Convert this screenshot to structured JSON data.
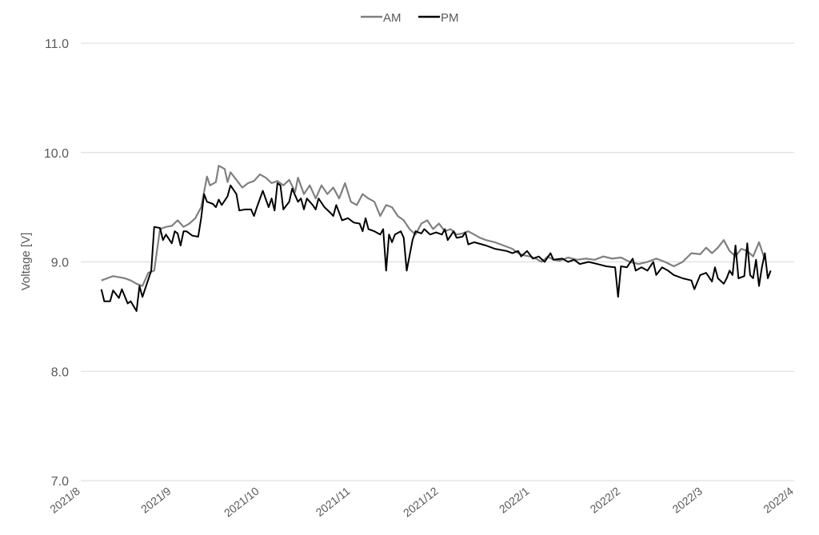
{
  "chart_data": {
    "type": "line",
    "title": "",
    "xlabel": "",
    "ylabel": "Voltage [V]",
    "ylim": [
      7.0,
      11.0
    ],
    "yticks": [
      "7.0",
      "8.0",
      "9.0",
      "10.0",
      "11.0"
    ],
    "xlim": [
      "2021-08-01",
      "2022-04-01"
    ],
    "xticks": [
      "2021/8",
      "2021/9",
      "2021/10",
      "2021/11",
      "2021/12",
      "2022/1",
      "2022/2",
      "2022/3",
      "2022/4"
    ],
    "grid": true,
    "legend_position": "top-center",
    "series": [
      {
        "name": "AM",
        "color": "#808080",
        "points": [
          [
            "2021-08-08",
            8.83
          ],
          [
            "2021-08-10",
            8.85
          ],
          [
            "2021-08-12",
            8.87
          ],
          [
            "2021-08-14",
            8.86
          ],
          [
            "2021-08-16",
            8.85
          ],
          [
            "2021-08-18",
            8.83
          ],
          [
            "2021-08-20",
            8.8
          ],
          [
            "2021-08-22",
            8.78
          ],
          [
            "2021-08-24",
            8.9
          ],
          [
            "2021-08-26",
            8.92
          ],
          [
            "2021-08-28",
            9.3
          ],
          [
            "2021-08-30",
            9.32
          ],
          [
            "2021-09-01",
            9.33
          ],
          [
            "2021-09-03",
            9.38
          ],
          [
            "2021-09-05",
            9.32
          ],
          [
            "2021-09-07",
            9.35
          ],
          [
            "2021-09-09",
            9.4
          ],
          [
            "2021-09-11",
            9.5
          ],
          [
            "2021-09-13",
            9.78
          ],
          [
            "2021-09-14",
            9.7
          ],
          [
            "2021-09-16",
            9.73
          ],
          [
            "2021-09-17",
            9.88
          ],
          [
            "2021-09-19",
            9.85
          ],
          [
            "2021-09-20",
            9.73
          ],
          [
            "2021-09-21",
            9.82
          ],
          [
            "2021-09-23",
            9.75
          ],
          [
            "2021-09-25",
            9.68
          ],
          [
            "2021-09-27",
            9.72
          ],
          [
            "2021-09-29",
            9.74
          ],
          [
            "2021-10-01",
            9.8
          ],
          [
            "2021-10-03",
            9.77
          ],
          [
            "2021-10-05",
            9.72
          ],
          [
            "2021-10-07",
            9.74
          ],
          [
            "2021-10-09",
            9.7
          ],
          [
            "2021-10-11",
            9.75
          ],
          [
            "2021-10-13",
            9.64
          ],
          [
            "2021-10-14",
            9.77
          ],
          [
            "2021-10-16",
            9.62
          ],
          [
            "2021-10-18",
            9.7
          ],
          [
            "2021-10-20",
            9.58
          ],
          [
            "2021-10-22",
            9.7
          ],
          [
            "2021-10-24",
            9.62
          ],
          [
            "2021-10-26",
            9.68
          ],
          [
            "2021-10-28",
            9.58
          ],
          [
            "2021-10-30",
            9.72
          ],
          [
            "2021-11-01",
            9.55
          ],
          [
            "2021-11-03",
            9.52
          ],
          [
            "2021-11-05",
            9.62
          ],
          [
            "2021-11-07",
            9.58
          ],
          [
            "2021-11-09",
            9.55
          ],
          [
            "2021-11-11",
            9.42
          ],
          [
            "2021-11-13",
            9.52
          ],
          [
            "2021-11-15",
            9.5
          ],
          [
            "2021-11-17",
            9.42
          ],
          [
            "2021-11-19",
            9.38
          ],
          [
            "2021-11-21",
            9.3
          ],
          [
            "2021-11-23",
            9.25
          ],
          [
            "2021-11-25",
            9.35
          ],
          [
            "2021-11-27",
            9.38
          ],
          [
            "2021-11-29",
            9.3
          ],
          [
            "2021-12-01",
            9.35
          ],
          [
            "2021-12-03",
            9.28
          ],
          [
            "2021-12-05",
            9.3
          ],
          [
            "2021-12-07",
            9.25
          ],
          [
            "2021-12-09",
            9.26
          ],
          [
            "2021-12-11",
            9.28
          ],
          [
            "2021-12-13",
            9.25
          ],
          [
            "2021-12-15",
            9.22
          ],
          [
            "2021-12-17",
            9.2
          ],
          [
            "2021-12-20",
            9.18
          ],
          [
            "2021-12-23",
            9.15
          ],
          [
            "2021-12-26",
            9.12
          ],
          [
            "2021-12-28",
            9.08
          ],
          [
            "2021-12-30",
            9.06
          ],
          [
            "2022-01-01",
            9.05
          ],
          [
            "2022-01-03",
            9.03
          ],
          [
            "2022-01-05",
            9.0
          ],
          [
            "2022-01-07",
            9.05
          ],
          [
            "2022-01-09",
            9.02
          ],
          [
            "2022-01-11",
            9.01
          ],
          [
            "2022-01-14",
            9.04
          ],
          [
            "2022-01-17",
            9.02
          ],
          [
            "2022-01-20",
            9.03
          ],
          [
            "2022-01-23",
            9.02
          ],
          [
            "2022-01-26",
            9.05
          ],
          [
            "2022-01-29",
            9.03
          ],
          [
            "2022-02-01",
            9.04
          ],
          [
            "2022-02-04",
            9.0
          ],
          [
            "2022-02-07",
            8.98
          ],
          [
            "2022-02-10",
            9.0
          ],
          [
            "2022-02-13",
            9.03
          ],
          [
            "2022-02-16",
            9.0
          ],
          [
            "2022-02-19",
            8.96
          ],
          [
            "2022-02-22",
            9.0
          ],
          [
            "2022-02-25",
            9.08
          ],
          [
            "2022-02-28",
            9.07
          ],
          [
            "2022-03-02",
            9.13
          ],
          [
            "2022-03-04",
            9.08
          ],
          [
            "2022-03-06",
            9.13
          ],
          [
            "2022-03-08",
            9.2
          ],
          [
            "2022-03-10",
            9.1
          ],
          [
            "2022-03-12",
            9.05
          ],
          [
            "2022-03-14",
            9.12
          ],
          [
            "2022-03-16",
            9.1
          ],
          [
            "2022-03-18",
            9.05
          ],
          [
            "2022-03-20",
            9.18
          ],
          [
            "2022-03-22",
            9.02
          ]
        ]
      },
      {
        "name": "PM",
        "color": "#000000",
        "points": [
          [
            "2021-08-08",
            8.75
          ],
          [
            "2021-08-09",
            8.64
          ],
          [
            "2021-08-11",
            8.64
          ],
          [
            "2021-08-12",
            8.74
          ],
          [
            "2021-08-14",
            8.67
          ],
          [
            "2021-08-15",
            8.75
          ],
          [
            "2021-08-17",
            8.62
          ],
          [
            "2021-08-18",
            8.64
          ],
          [
            "2021-08-20",
            8.55
          ],
          [
            "2021-08-21",
            8.78
          ],
          [
            "2021-08-22",
            8.68
          ],
          [
            "2021-08-25",
            8.92
          ],
          [
            "2021-08-26",
            9.32
          ],
          [
            "2021-08-28",
            9.31
          ],
          [
            "2021-08-29",
            9.2
          ],
          [
            "2021-08-30",
            9.25
          ],
          [
            "2021-09-01",
            9.17
          ],
          [
            "2021-09-02",
            9.28
          ],
          [
            "2021-09-03",
            9.26
          ],
          [
            "2021-09-04",
            9.15
          ],
          [
            "2021-09-05",
            9.28
          ],
          [
            "2021-09-06",
            9.28
          ],
          [
            "2021-09-08",
            9.24
          ],
          [
            "2021-09-10",
            9.23
          ],
          [
            "2021-09-11",
            9.4
          ],
          [
            "2021-09-12",
            9.62
          ],
          [
            "2021-09-13",
            9.55
          ],
          [
            "2021-09-15",
            9.53
          ],
          [
            "2021-09-16",
            9.5
          ],
          [
            "2021-09-17",
            9.57
          ],
          [
            "2021-09-18",
            9.52
          ],
          [
            "2021-09-20",
            9.6
          ],
          [
            "2021-09-21",
            9.7
          ],
          [
            "2021-09-23",
            9.62
          ],
          [
            "2021-09-24",
            9.47
          ],
          [
            "2021-09-26",
            9.48
          ],
          [
            "2021-09-28",
            9.48
          ],
          [
            "2021-09-29",
            9.42
          ],
          [
            "2021-09-30",
            9.5
          ],
          [
            "2021-10-02",
            9.65
          ],
          [
            "2021-10-04",
            9.5
          ],
          [
            "2021-10-05",
            9.58
          ],
          [
            "2021-10-06",
            9.47
          ],
          [
            "2021-10-07",
            9.72
          ],
          [
            "2021-10-08",
            9.7
          ],
          [
            "2021-10-09",
            9.48
          ],
          [
            "2021-10-11",
            9.55
          ],
          [
            "2021-10-12",
            9.67
          ],
          [
            "2021-10-14",
            9.55
          ],
          [
            "2021-10-15",
            9.58
          ],
          [
            "2021-10-16",
            9.48
          ],
          [
            "2021-10-17",
            9.58
          ],
          [
            "2021-10-19",
            9.52
          ],
          [
            "2021-10-20",
            9.48
          ],
          [
            "2021-10-21",
            9.58
          ],
          [
            "2021-10-23",
            9.5
          ],
          [
            "2021-10-25",
            9.45
          ],
          [
            "2021-10-26",
            9.42
          ],
          [
            "2021-10-27",
            9.52
          ],
          [
            "2021-10-29",
            9.38
          ],
          [
            "2021-10-31",
            9.4
          ],
          [
            "2021-11-02",
            9.36
          ],
          [
            "2021-11-04",
            9.35
          ],
          [
            "2021-11-05",
            9.28
          ],
          [
            "2021-11-06",
            9.4
          ],
          [
            "2021-11-07",
            9.3
          ],
          [
            "2021-11-09",
            9.28
          ],
          [
            "2021-11-11",
            9.25
          ],
          [
            "2021-11-12",
            9.3
          ],
          [
            "2021-11-13",
            8.92
          ],
          [
            "2021-11-14",
            9.25
          ],
          [
            "2021-11-15",
            9.18
          ],
          [
            "2021-11-16",
            9.25
          ],
          [
            "2021-11-18",
            9.28
          ],
          [
            "2021-11-19",
            9.22
          ],
          [
            "2021-11-20",
            8.92
          ],
          [
            "2021-11-22",
            9.2
          ],
          [
            "2021-11-23",
            9.28
          ],
          [
            "2021-11-25",
            9.26
          ],
          [
            "2021-11-26",
            9.3
          ],
          [
            "2021-11-28",
            9.25
          ],
          [
            "2021-11-30",
            9.27
          ],
          [
            "2021-12-02",
            9.25
          ],
          [
            "2021-12-03",
            9.3
          ],
          [
            "2021-12-04",
            9.2
          ],
          [
            "2021-12-06",
            9.28
          ],
          [
            "2021-12-07",
            9.22
          ],
          [
            "2021-12-09",
            9.23
          ],
          [
            "2021-12-10",
            9.27
          ],
          [
            "2021-12-11",
            9.16
          ],
          [
            "2021-12-13",
            9.18
          ],
          [
            "2021-12-17",
            9.15
          ],
          [
            "2021-12-20",
            9.12
          ],
          [
            "2021-12-24",
            9.1
          ],
          [
            "2021-12-26",
            9.08
          ],
          [
            "2021-12-28",
            9.1
          ],
          [
            "2021-12-29",
            9.05
          ],
          [
            "2021-12-31",
            9.1
          ],
          [
            "2022-01-02",
            9.03
          ],
          [
            "2022-01-04",
            9.05
          ],
          [
            "2022-01-06",
            9.0
          ],
          [
            "2022-01-08",
            9.08
          ],
          [
            "2022-01-09",
            9.02
          ],
          [
            "2022-01-12",
            9.03
          ],
          [
            "2022-01-14",
            9.0
          ],
          [
            "2022-01-16",
            9.02
          ],
          [
            "2022-01-18",
            8.98
          ],
          [
            "2022-01-21",
            9.0
          ],
          [
            "2022-01-24",
            8.98
          ],
          [
            "2022-01-27",
            8.96
          ],
          [
            "2022-01-30",
            8.95
          ],
          [
            "2022-01-31",
            8.68
          ],
          [
            "2022-02-01",
            8.96
          ],
          [
            "2022-02-03",
            8.95
          ],
          [
            "2022-02-05",
            9.03
          ],
          [
            "2022-02-06",
            8.92
          ],
          [
            "2022-02-08",
            8.95
          ],
          [
            "2022-02-10",
            8.92
          ],
          [
            "2022-02-12",
            9.0
          ],
          [
            "2022-02-13",
            8.88
          ],
          [
            "2022-02-15",
            8.95
          ],
          [
            "2022-02-17",
            8.92
          ],
          [
            "2022-02-19",
            8.88
          ],
          [
            "2022-02-22",
            8.85
          ],
          [
            "2022-02-25",
            8.83
          ],
          [
            "2022-02-26",
            8.75
          ],
          [
            "2022-02-28",
            8.88
          ],
          [
            "2022-03-02",
            8.9
          ],
          [
            "2022-03-04",
            8.82
          ],
          [
            "2022-03-05",
            8.95
          ],
          [
            "2022-03-06",
            8.85
          ],
          [
            "2022-03-08",
            8.8
          ],
          [
            "2022-03-09",
            8.85
          ],
          [
            "2022-03-10",
            8.92
          ],
          [
            "2022-03-11",
            8.88
          ],
          [
            "2022-03-12",
            9.15
          ],
          [
            "2022-03-13",
            8.85
          ],
          [
            "2022-03-15",
            8.87
          ],
          [
            "2022-03-16",
            9.17
          ],
          [
            "2022-03-17",
            8.88
          ],
          [
            "2022-03-18",
            8.85
          ],
          [
            "2022-03-19",
            9.02
          ],
          [
            "2022-03-20",
            8.78
          ],
          [
            "2022-03-21",
            8.95
          ],
          [
            "2022-03-22",
            9.08
          ],
          [
            "2022-03-23",
            8.85
          ],
          [
            "2022-03-24",
            8.92
          ]
        ]
      }
    ]
  }
}
